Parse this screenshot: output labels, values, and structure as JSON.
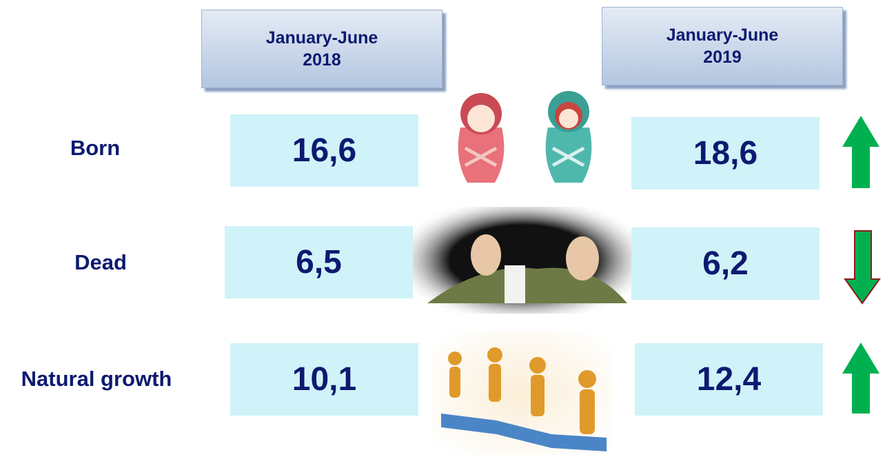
{
  "header": {
    "period_2018": {
      "line1": "January-June",
      "line2": "2018"
    },
    "period_2019": {
      "line1": "January-June",
      "line2": "2019"
    }
  },
  "table": {
    "rows": [
      [
        "Born",
        "16,6",
        "18,6"
      ],
      [
        "Dead",
        "6,5",
        "6,2"
      ],
      [
        "Natural growth",
        "10,1",
        "12,4"
      ]
    ]
  }
}
